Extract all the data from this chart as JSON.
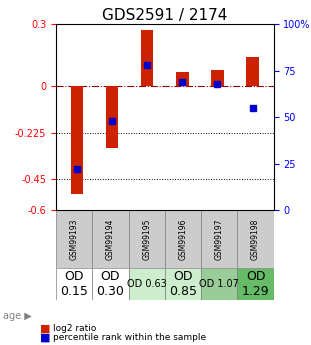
{
  "title": "GDS2591 / 2174",
  "samples": [
    "GSM99193",
    "GSM99194",
    "GSM99195",
    "GSM99196",
    "GSM99197",
    "GSM99198"
  ],
  "log2_ratio": [
    -0.52,
    -0.3,
    0.27,
    0.07,
    0.08,
    0.14
  ],
  "percentile_rank": [
    22,
    48,
    78,
    69,
    68,
    55
  ],
  "ylim_left": [
    -0.6,
    0.3
  ],
  "ylim_right": [
    0,
    100
  ],
  "yticks_left": [
    0.3,
    0,
    -0.225,
    -0.45,
    -0.6
  ],
  "yticks_right": [
    100,
    75,
    50,
    25,
    0
  ],
  "hlines": [
    0,
    -0.225,
    -0.45
  ],
  "bar_color": "#cc2200",
  "dot_color": "#0000cc",
  "bar_width": 0.35,
  "age_labels": [
    "OD\n0.15",
    "OD\n0.30",
    "OD 0.63",
    "OD\n0.85",
    "OD 1.07",
    "OD\n1.29"
  ],
  "age_bg_colors": [
    "#ffffff",
    "#ffffff",
    "#cceecc",
    "#cceecc",
    "#99cc99",
    "#66bb66"
  ],
  "age_font_sizes": [
    9,
    9,
    7,
    9,
    7,
    9
  ],
  "sample_bg_color": "#cccccc",
  "title_fontsize": 11,
  "legend_items": [
    "log2 ratio",
    "percentile rank within the sample"
  ]
}
